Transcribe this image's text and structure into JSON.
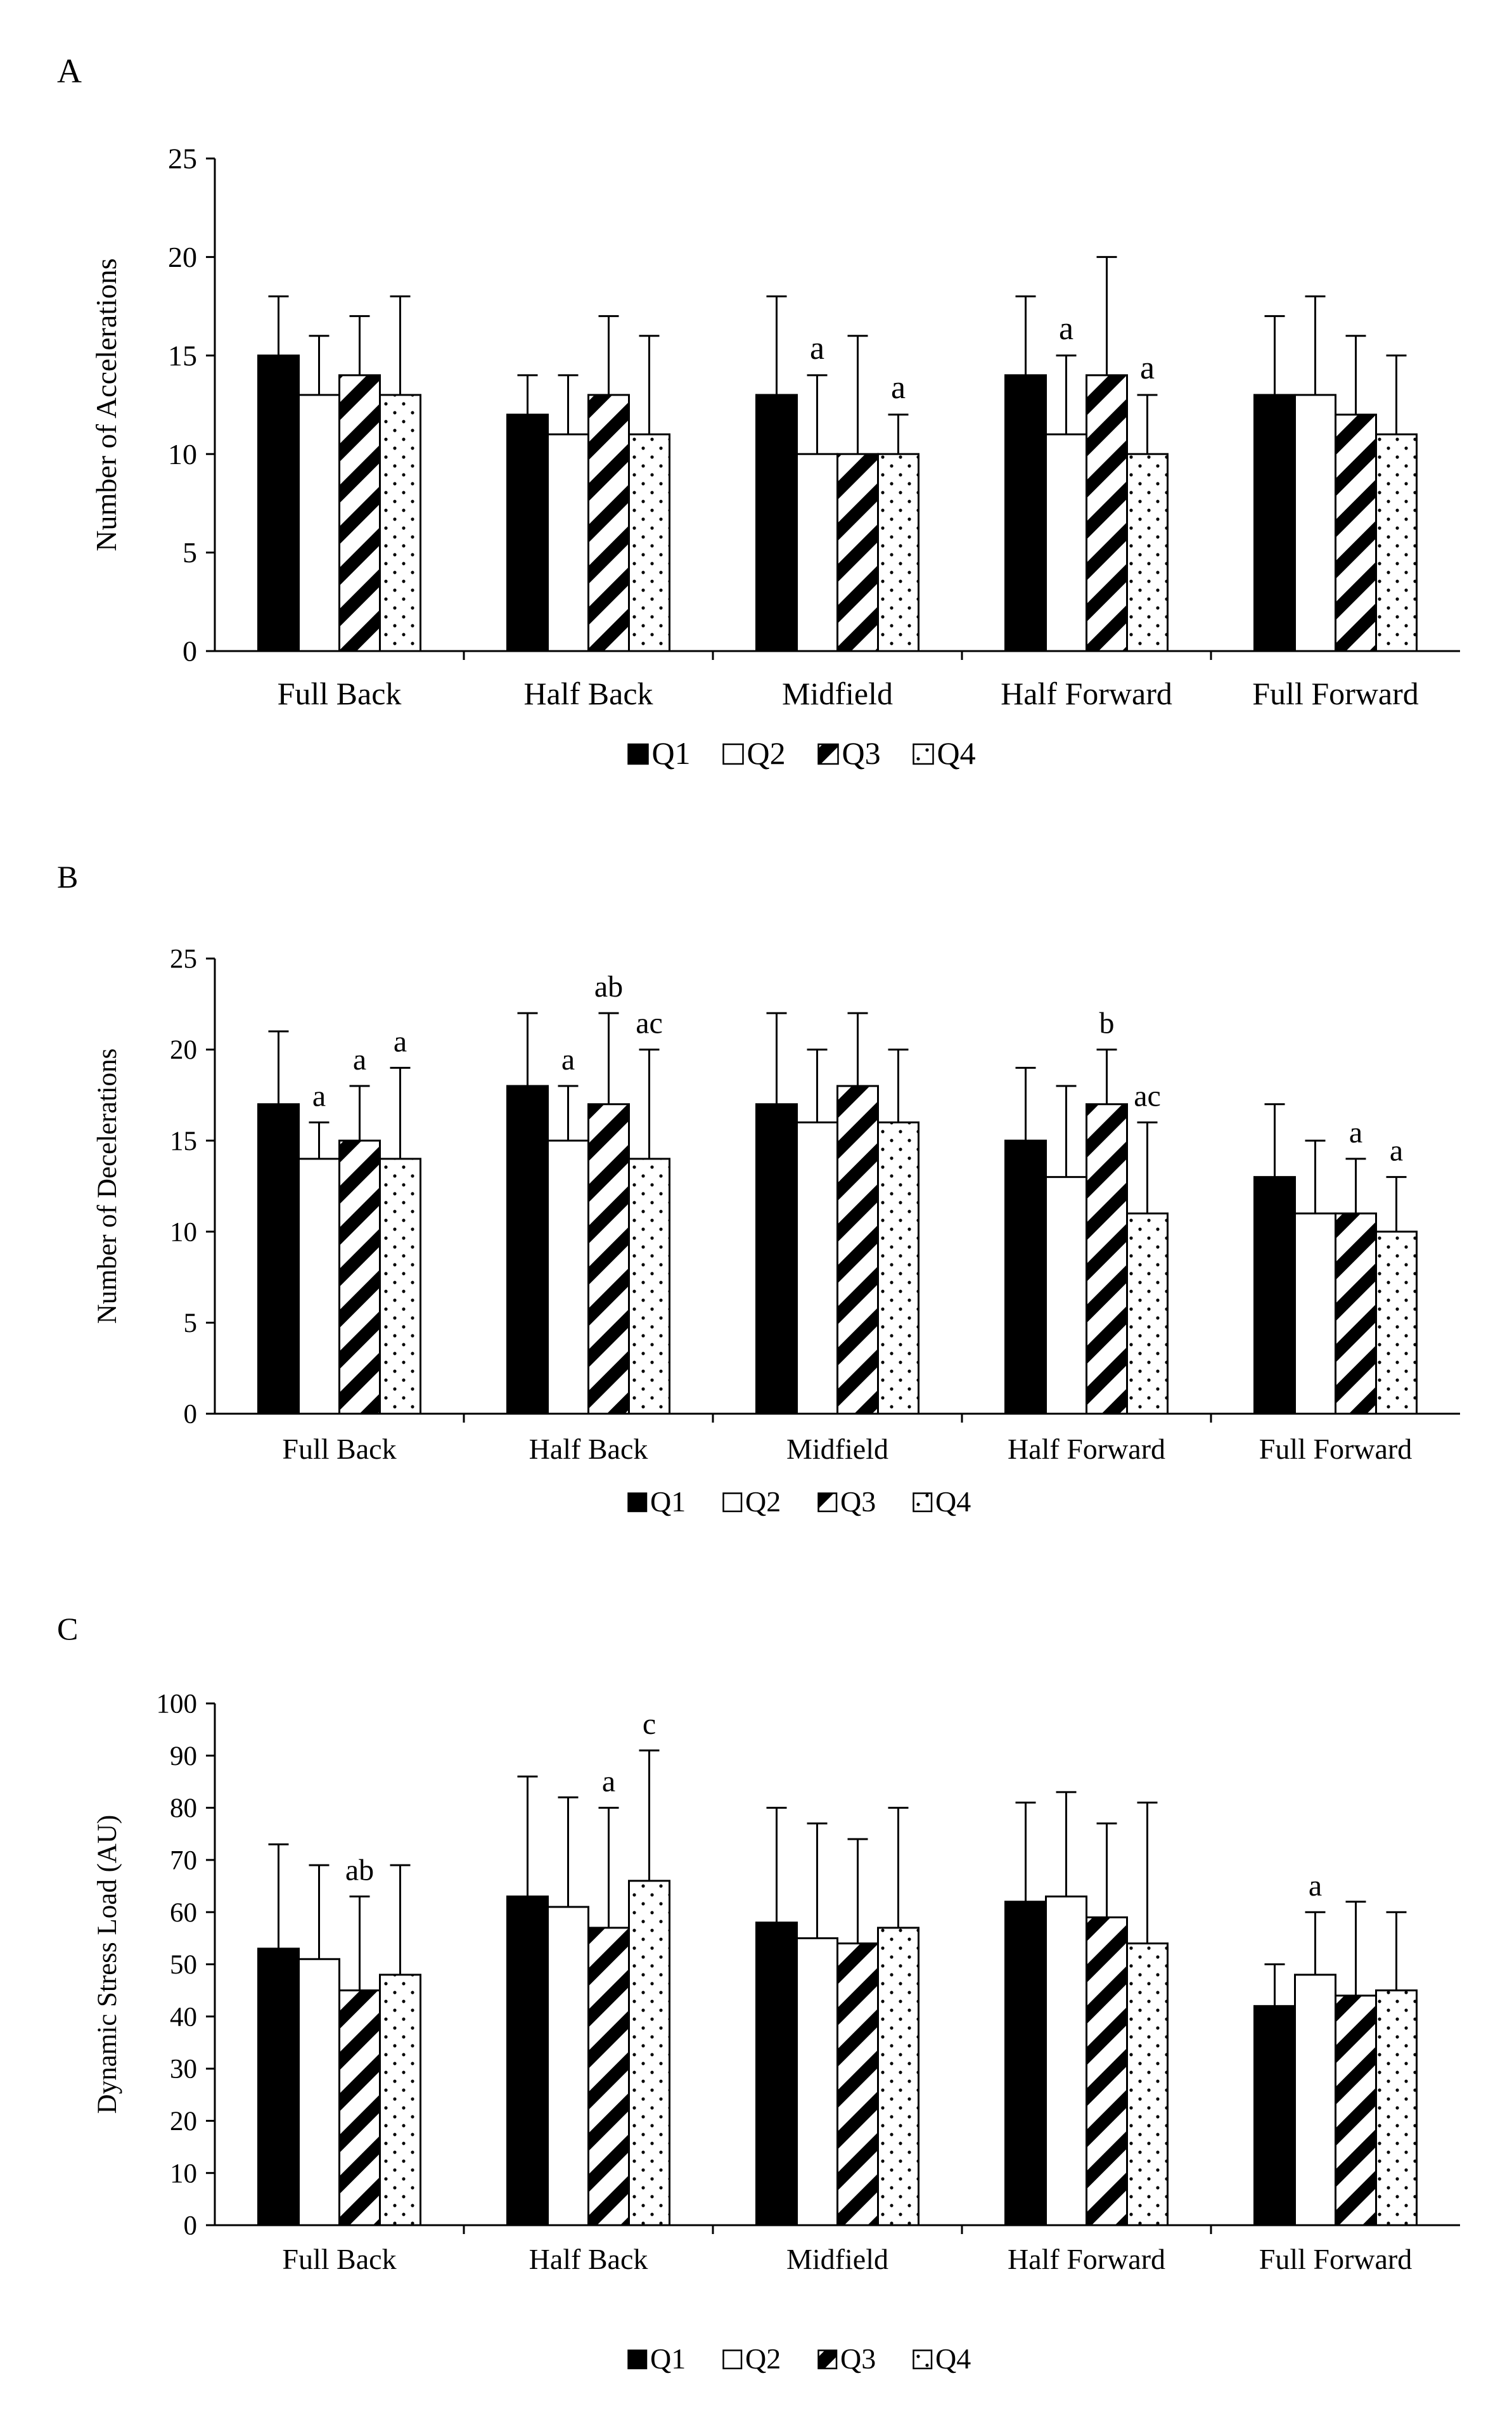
{
  "patterns": {
    "Q1": "solid",
    "Q2": "blank",
    "Q3": "diagonal-stripes",
    "Q4": "dots"
  },
  "colors": {
    "ink": "#000000",
    "paper": "#ffffff"
  },
  "chart_data": [
    {
      "type": "bar",
      "panel_label": "A",
      "title": "",
      "xlabel": "",
      "ylabel": "Number of Accelerations",
      "ylim": [
        0,
        25
      ],
      "yticks": [
        0,
        5,
        10,
        15,
        20,
        25
      ],
      "grid": false,
      "legend_position": "bottom",
      "categories": [
        "Full Back",
        "Half Back",
        "Midfield",
        "Half Forward",
        "Full Forward"
      ],
      "series": [
        {
          "name": "Q1",
          "values": [
            15,
            12,
            13,
            14,
            13
          ],
          "errors": [
            3,
            2,
            5,
            4,
            4
          ]
        },
        {
          "name": "Q2",
          "values": [
            13,
            11,
            10,
            11,
            13
          ],
          "errors": [
            3,
            3,
            4,
            4,
            5
          ]
        },
        {
          "name": "Q3",
          "values": [
            14,
            13,
            10,
            14,
            12
          ],
          "errors": [
            3,
            4,
            6,
            6,
            4
          ]
        },
        {
          "name": "Q4",
          "values": [
            13,
            11,
            10,
            10,
            11
          ],
          "errors": [
            5,
            5,
            2,
            3,
            4
          ]
        }
      ],
      "annotations": [
        {
          "category": 2,
          "series": 1,
          "text": "a"
        },
        {
          "category": 2,
          "series": 3,
          "text": "a"
        },
        {
          "category": 3,
          "series": 1,
          "text": "a"
        },
        {
          "category": 3,
          "series": 3,
          "text": "a"
        }
      ]
    },
    {
      "type": "bar",
      "panel_label": "B",
      "title": "",
      "xlabel": "",
      "ylabel": "Number of Decelerations",
      "ylim": [
        0,
        25
      ],
      "yticks": [
        0,
        5,
        10,
        15,
        20,
        25
      ],
      "grid": false,
      "legend_position": "bottom",
      "categories": [
        "Full Back",
        "Half Back",
        "Midfield",
        "Half Forward",
        "Full Forward"
      ],
      "series": [
        {
          "name": "Q1",
          "values": [
            17,
            18,
            17,
            15,
            13
          ],
          "errors": [
            4,
            4,
            5,
            4,
            4
          ]
        },
        {
          "name": "Q2",
          "values": [
            14,
            15,
            16,
            13,
            11
          ],
          "errors": [
            2,
            3,
            4,
            5,
            4
          ]
        },
        {
          "name": "Q3",
          "values": [
            15,
            17,
            18,
            17,
            11
          ],
          "errors": [
            3,
            5,
            4,
            3,
            3
          ]
        },
        {
          "name": "Q4",
          "values": [
            14,
            14,
            16,
            11,
            10
          ],
          "errors": [
            5,
            6,
            4,
            5,
            3
          ]
        }
      ],
      "annotations": [
        {
          "category": 0,
          "series": 1,
          "text": "a"
        },
        {
          "category": 0,
          "series": 2,
          "text": "a"
        },
        {
          "category": 0,
          "series": 3,
          "text": "a"
        },
        {
          "category": 1,
          "series": 1,
          "text": "a"
        },
        {
          "category": 1,
          "series": 2,
          "text": "ab"
        },
        {
          "category": 1,
          "series": 3,
          "text": "ac"
        },
        {
          "category": 3,
          "series": 2,
          "text": "b"
        },
        {
          "category": 3,
          "series": 3,
          "text": "ac"
        },
        {
          "category": 4,
          "series": 2,
          "text": "a"
        },
        {
          "category": 4,
          "series": 3,
          "text": "a"
        }
      ]
    },
    {
      "type": "bar",
      "panel_label": "C",
      "title": "",
      "xlabel": "",
      "ylabel": "Dynamic Stress Load (AU)",
      "ylim": [
        0,
        100
      ],
      "yticks": [
        0,
        10,
        20,
        30,
        40,
        50,
        60,
        70,
        80,
        90,
        100
      ],
      "grid": false,
      "legend_position": "bottom",
      "categories": [
        "Full Back",
        "Half Back",
        "Midfield",
        "Half Forward",
        "Full Forward"
      ],
      "series": [
        {
          "name": "Q1",
          "values": [
            53,
            63,
            58,
            62,
            42
          ],
          "errors": [
            20,
            23,
            22,
            19,
            8
          ]
        },
        {
          "name": "Q2",
          "values": [
            51,
            61,
            55,
            63,
            48
          ],
          "errors": [
            18,
            21,
            22,
            20,
            12
          ]
        },
        {
          "name": "Q3",
          "values": [
            45,
            57,
            54,
            59,
            44
          ],
          "errors": [
            18,
            23,
            20,
            18,
            18
          ]
        },
        {
          "name": "Q4",
          "values": [
            48,
            66,
            57,
            54,
            45
          ],
          "errors": [
            21,
            25,
            23,
            27,
            15
          ]
        }
      ],
      "annotations": [
        {
          "category": 0,
          "series": 2,
          "text": "ab"
        },
        {
          "category": 1,
          "series": 2,
          "text": "a"
        },
        {
          "category": 1,
          "series": 3,
          "text": "c"
        },
        {
          "category": 4,
          "series": 1,
          "text": "a"
        }
      ]
    }
  ]
}
